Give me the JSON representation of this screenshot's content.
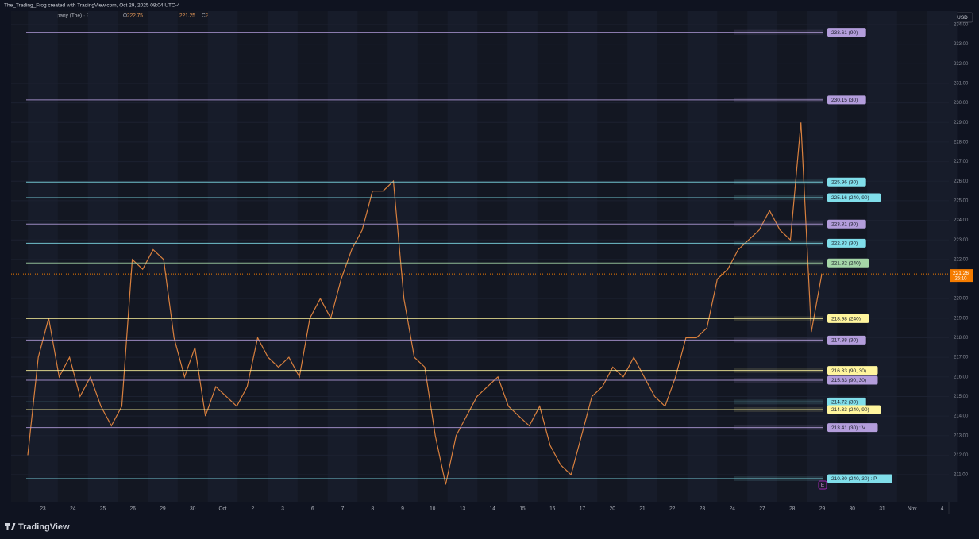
{
  "header": "The_Trading_Frog created with TradingView.com, Oct 29, 2025 08:04 UTC-4",
  "legend": {
    "symbol": "Boeing Company (The) · 30 · NYSE",
    "ohlc": [
      {
        "key": "O",
        "value": "222.75"
      },
      {
        "key": "H",
        "value": "222.82"
      },
      {
        "key": "L",
        "value": "221.25"
      },
      {
        "key": "C",
        "value": "221.26"
      }
    ]
  },
  "currency": "USD",
  "chart_data": {
    "type": "line",
    "color": "#d9803e",
    "values": [
      212,
      217,
      219,
      216,
      217,
      215,
      216,
      214.5,
      213.5,
      214.5,
      222,
      221.5,
      222.5,
      222,
      218,
      216,
      217.5,
      214,
      215.5,
      215,
      214.5,
      215.5,
      218,
      217,
      216.5,
      217,
      216,
      219,
      220,
      219,
      221,
      222.5,
      223.5,
      225.5,
      225.5,
      226,
      220,
      217,
      216.5,
      213,
      210.5,
      213,
      214,
      215,
      215.5,
      216,
      214.5,
      214,
      213.5,
      214.5,
      212.5,
      211.5,
      211,
      213,
      215,
      215.5,
      216.5,
      216,
      217,
      216,
      215,
      214.5,
      216,
      218,
      218,
      218.5,
      221,
      221.5,
      222.5,
      223,
      223.5,
      224.5,
      223.5,
      223,
      229,
      218.3,
      221.26
    ],
    "ylim": [
      210.11,
      234.69
    ],
    "yticks": [
      {
        "value": 211,
        "label": "211.00"
      },
      {
        "value": 212,
        "label": "212.00"
      },
      {
        "value": 213,
        "label": "213.00"
      },
      {
        "value": 214,
        "label": "214.00"
      },
      {
        "value": 215,
        "label": "215.00"
      },
      {
        "value": 216,
        "label": "216.00"
      },
      {
        "value": 217,
        "label": "217.00"
      },
      {
        "value": 218,
        "label": "218.00"
      },
      {
        "value": 219,
        "label": "219.00"
      },
      {
        "value": 220,
        "label": "220.00"
      },
      {
        "value": 221,
        "label": "221.00"
      },
      {
        "value": 222,
        "label": "222.00"
      },
      {
        "value": 223,
        "label": "223.00"
      },
      {
        "value": 224,
        "label": "224.00"
      },
      {
        "value": 225,
        "label": "225.00"
      },
      {
        "value": 226,
        "label": "226.00"
      },
      {
        "value": 227,
        "label": "227.00"
      },
      {
        "value": 228,
        "label": "228.00"
      },
      {
        "value": 229,
        "label": "229.00"
      },
      {
        "value": 230,
        "label": "230.00"
      },
      {
        "value": 231,
        "label": "231.00"
      },
      {
        "value": 232,
        "label": "232.00"
      },
      {
        "value": 233,
        "label": "233.00"
      },
      {
        "value": 234,
        "label": "234.00"
      }
    ],
    "x_labels": [
      "23",
      "24",
      "25",
      "26",
      "29",
      "30",
      "Oct",
      "2",
      "3",
      "6",
      "7",
      "8",
      "9",
      "10",
      "13",
      "14",
      "15",
      "16",
      "17",
      "20",
      "21",
      "22",
      "23",
      "24",
      "27",
      "28",
      "29",
      "30",
      "31",
      "Nov",
      "4"
    ],
    "last_price": {
      "value": 221.26,
      "label": "221.26",
      "countdown": "25:10"
    },
    "levels": [
      {
        "value": 233.61,
        "label": "233.61 (90)",
        "color": "#b39ddb"
      },
      {
        "value": 230.15,
        "label": "230.15 (30)",
        "color": "#b39ddb"
      },
      {
        "value": 225.96,
        "label": "225.96 (30)",
        "color": "#80deea"
      },
      {
        "value": 225.16,
        "label": "225.16 (240, 90)",
        "color": "#80deea"
      },
      {
        "value": 223.81,
        "label": "223.81 (30)",
        "color": "#b39ddb"
      },
      {
        "value": 222.83,
        "label": "222.83 (30)",
        "color": "#80deea"
      },
      {
        "value": 221.82,
        "label": "221.82 (240)",
        "color": "#a5d6a7"
      },
      {
        "value": 218.98,
        "label": "218.98 (240)",
        "color": "#fff59d"
      },
      {
        "value": 217.88,
        "label": "217.88 (30)",
        "color": "#b39ddb"
      },
      {
        "value": 216.33,
        "label": "216.33 (90, 30)",
        "color": "#fff59d"
      },
      {
        "value": 215.83,
        "label": "215.83 (90, 30)",
        "color": "#b39ddb"
      },
      {
        "value": 214.72,
        "label": "214.72 (30)",
        "color": "#80deea"
      },
      {
        "value": 214.33,
        "label": "214.33 (240, 90)",
        "color": "#fff59d"
      },
      {
        "value": 213.41,
        "label": "213.41 (30) : V",
        "color": "#b39ddb"
      },
      {
        "value": 210.8,
        "label": "210.80 (240, 30) : P",
        "color": "#80deea"
      }
    ],
    "earnings_marker": "E"
  },
  "footer": {
    "brand": "TradingView"
  }
}
